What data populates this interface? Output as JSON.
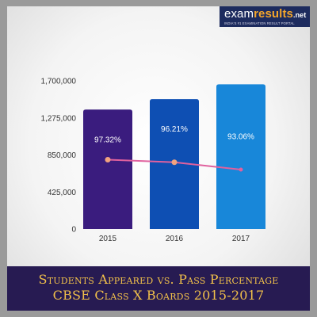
{
  "logo": {
    "text_main": "exam",
    "text_accent": "results",
    "text_suffix": ".net",
    "tagline": "INDIA'S #1 EXAMINATION RESULT PORTAL"
  },
  "banner": {
    "line1": "Students Appeared vs. Pass Percentage",
    "line2": "CBSE Class X Boards 2015-2017"
  },
  "colors": {
    "bar_2015": "#3a1c7e",
    "bar_2016": "#0e4fb3",
    "bar_2017": "#1887d9",
    "line": "#e0619e",
    "marker": "#f2a37f",
    "banner_bg": "#271b52",
    "banner_text": "#f2c14a"
  },
  "chart_data": {
    "type": "bar",
    "categories": [
      "2015",
      "2016",
      "2017"
    ],
    "series": [
      {
        "values": [
          1370000,
          1490000,
          1660000
        ],
        "labels": [
          "97.32%",
          "96.21%",
          "93.06%"
        ]
      }
    ],
    "line_overlay": {
      "values": [
        97.32,
        96.21,
        93.06
      ]
    },
    "ylim": [
      0,
      1700000
    ],
    "yticks": [
      0,
      425000,
      850000,
      1275000,
      1700000
    ],
    "ytick_labels": [
      "0",
      "425,000",
      "850,000",
      "1,275,000",
      "1,700,000"
    ],
    "grid": false,
    "title": "",
    "xlabel": "",
    "ylabel": ""
  }
}
